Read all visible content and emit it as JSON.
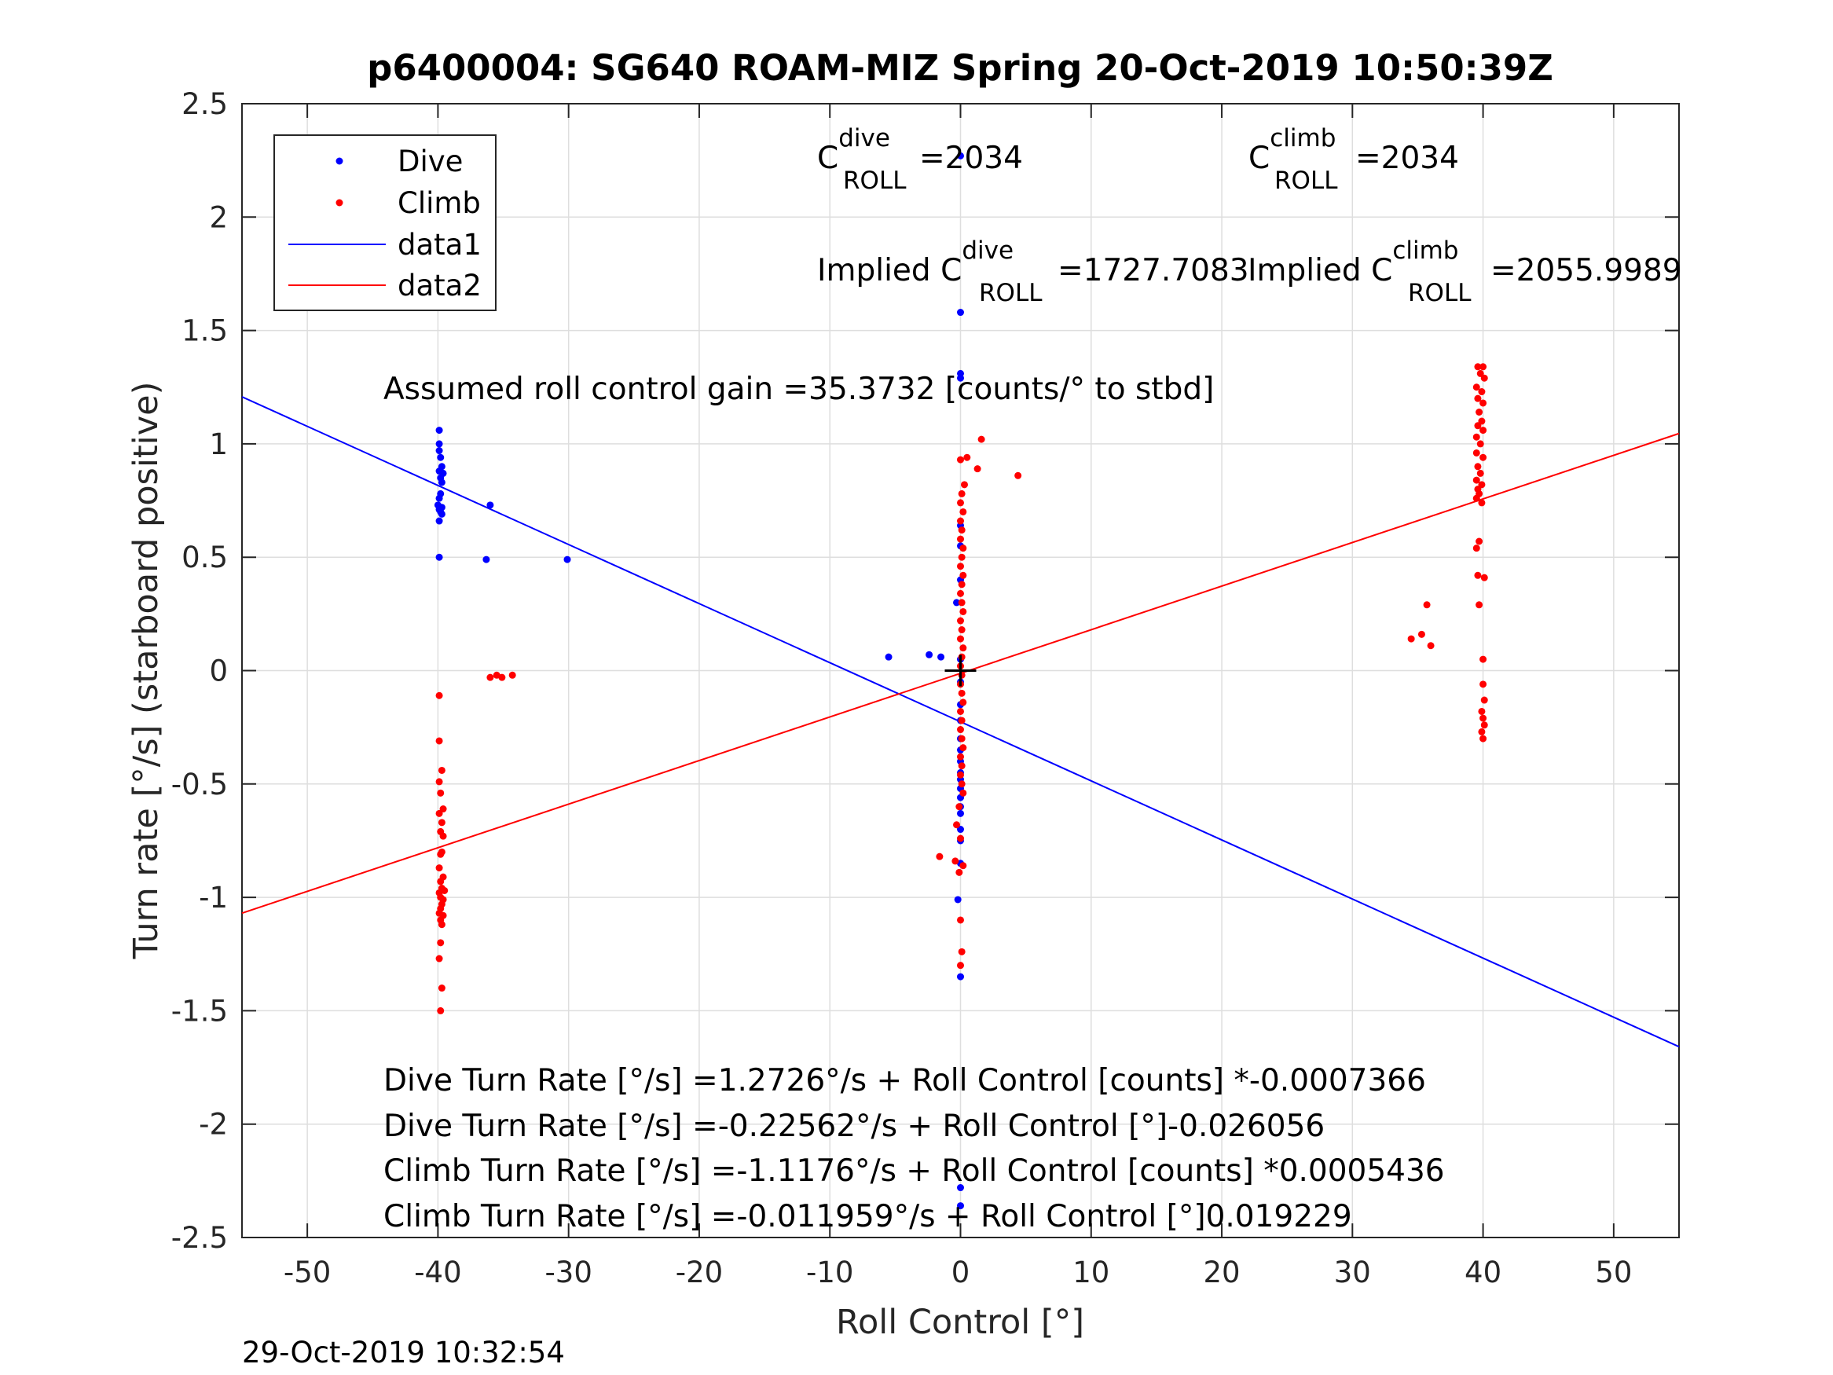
{
  "chart_data": {
    "type": "scatter",
    "title": "p6400004: SG640 ROAM-MIZ Spring 20-Oct-2019 10:50:39Z",
    "xlabel": "Roll Control [°]",
    "ylabel": "Turn rate [°/s] (starboard positive)",
    "xlim": [
      -55,
      55
    ],
    "ylim": [
      -2.5,
      2.5
    ],
    "xticks": [
      -50,
      -40,
      -30,
      -20,
      -10,
      0,
      10,
      20,
      30,
      40,
      50
    ],
    "xtick_labels": [
      "-50",
      "-40",
      "-30",
      "-20",
      "-10",
      "0",
      "10",
      "20",
      "30",
      "40",
      "50"
    ],
    "yticks": [
      -2.5,
      -2,
      -1.5,
      -1,
      -0.5,
      0,
      0.5,
      1,
      1.5,
      2,
      2.5
    ],
    "ytick_labels": [
      "-2.5",
      "-2",
      "-1.5",
      "-1",
      "-0.5",
      "0",
      "0.5",
      "1",
      "1.5",
      "2",
      "2.5"
    ],
    "grid": true,
    "legend_position": "top-left",
    "series": [
      {
        "name": "Dive",
        "kind": "scatter",
        "color": "#0000ff",
        "points": [
          [
            -39.9,
            1.06
          ],
          [
            -39.9,
            1.0
          ],
          [
            -39.9,
            0.97
          ],
          [
            -39.8,
            0.94
          ],
          [
            -39.7,
            0.9
          ],
          [
            -39.9,
            0.88
          ],
          [
            -39.6,
            0.87
          ],
          [
            -39.8,
            0.85
          ],
          [
            -39.7,
            0.83
          ],
          [
            -39.8,
            0.78
          ],
          [
            -39.9,
            0.76
          ],
          [
            -40.0,
            0.73
          ],
          [
            -39.7,
            0.72
          ],
          [
            -39.9,
            0.71
          ],
          [
            -39.8,
            0.7
          ],
          [
            -39.7,
            0.69
          ],
          [
            -39.9,
            0.66
          ],
          [
            -39.9,
            0.5
          ],
          [
            -36.0,
            0.73
          ],
          [
            -36.3,
            0.49
          ],
          [
            -30.1,
            0.49
          ],
          [
            -5.5,
            0.06
          ],
          [
            -2.4,
            0.07
          ],
          [
            -1.5,
            0.06
          ],
          [
            -0.3,
            0.3
          ],
          [
            0.0,
            2.27
          ],
          [
            0.0,
            1.58
          ],
          [
            0.0,
            1.31
          ],
          [
            0.0,
            1.29
          ],
          [
            0.0,
            0.64
          ],
          [
            0.0,
            0.55
          ],
          [
            0.0,
            0.4
          ],
          [
            0.0,
            0.05
          ],
          [
            0.0,
            -0.05
          ],
          [
            0.0,
            -0.15
          ],
          [
            0.0,
            -0.22
          ],
          [
            0.0,
            -0.3
          ],
          [
            0.0,
            -0.35
          ],
          [
            0.0,
            -0.4
          ],
          [
            0.0,
            -0.45
          ],
          [
            0.0,
            -0.48
          ],
          [
            0.0,
            -0.52
          ],
          [
            0.0,
            -0.56
          ],
          [
            0.0,
            -0.6
          ],
          [
            0.0,
            -0.63
          ],
          [
            0.0,
            -0.7
          ],
          [
            0.0,
            -0.75
          ],
          [
            0.0,
            -0.85
          ],
          [
            -0.2,
            -1.01
          ],
          [
            0.0,
            -1.35
          ],
          [
            0.0,
            -2.28
          ],
          [
            0.0,
            -2.36
          ]
        ]
      },
      {
        "name": "Climb",
        "kind": "scatter",
        "color": "#ff0000",
        "points": [
          [
            -39.9,
            -0.11
          ],
          [
            -39.9,
            -0.31
          ],
          [
            -39.7,
            -0.44
          ],
          [
            -39.9,
            -0.49
          ],
          [
            -39.8,
            -0.54
          ],
          [
            -39.6,
            -0.61
          ],
          [
            -39.9,
            -0.63
          ],
          [
            -39.7,
            -0.67
          ],
          [
            -39.8,
            -0.71
          ],
          [
            -39.6,
            -0.73
          ],
          [
            -39.7,
            -0.8
          ],
          [
            -39.8,
            -0.81
          ],
          [
            -39.9,
            -0.87
          ],
          [
            -39.6,
            -0.91
          ],
          [
            -39.8,
            -0.93
          ],
          [
            -39.7,
            -0.96
          ],
          [
            -39.5,
            -0.97
          ],
          [
            -39.9,
            -0.98
          ],
          [
            -39.8,
            -1.0
          ],
          [
            -39.6,
            -1.01
          ],
          [
            -39.7,
            -1.03
          ],
          [
            -39.8,
            -1.05
          ],
          [
            -39.9,
            -1.07
          ],
          [
            -39.6,
            -1.08
          ],
          [
            -39.8,
            -1.1
          ],
          [
            -39.7,
            -1.12
          ],
          [
            -39.8,
            -1.2
          ],
          [
            -39.9,
            -1.27
          ],
          [
            -39.7,
            -1.4
          ],
          [
            -39.8,
            -1.5
          ],
          [
            -36.0,
            -0.03
          ],
          [
            -35.5,
            -0.02
          ],
          [
            -35.1,
            -0.03
          ],
          [
            -34.3,
            -0.02
          ],
          [
            0.0,
            0.93
          ],
          [
            0.5,
            0.94
          ],
          [
            1.3,
            0.89
          ],
          [
            1.6,
            1.02
          ],
          [
            4.4,
            0.86
          ],
          [
            0.3,
            0.82
          ],
          [
            0.1,
            0.78
          ],
          [
            0.0,
            0.74
          ],
          [
            0.2,
            0.7
          ],
          [
            0.0,
            0.66
          ],
          [
            0.1,
            0.62
          ],
          [
            0.0,
            0.58
          ],
          [
            0.2,
            0.54
          ],
          [
            0.1,
            0.5
          ],
          [
            0.0,
            0.46
          ],
          [
            0.2,
            0.42
          ],
          [
            0.1,
            0.38
          ],
          [
            0.0,
            0.34
          ],
          [
            0.1,
            0.3
          ],
          [
            0.2,
            0.26
          ],
          [
            0.0,
            0.22
          ],
          [
            0.1,
            0.18
          ],
          [
            0.0,
            0.14
          ],
          [
            0.2,
            0.1
          ],
          [
            0.1,
            0.06
          ],
          [
            0.0,
            0.02
          ],
          [
            0.1,
            -0.02
          ],
          [
            0.0,
            -0.06
          ],
          [
            0.1,
            -0.1
          ],
          [
            0.2,
            -0.14
          ],
          [
            0.0,
            -0.18
          ],
          [
            0.1,
            -0.22
          ],
          [
            0.0,
            -0.26
          ],
          [
            0.1,
            -0.3
          ],
          [
            0.2,
            -0.34
          ],
          [
            0.0,
            -0.38
          ],
          [
            0.1,
            -0.42
          ],
          [
            0.0,
            -0.46
          ],
          [
            0.1,
            -0.5
          ],
          [
            0.2,
            -0.54
          ],
          [
            -0.1,
            -0.6
          ],
          [
            -0.3,
            -0.68
          ],
          [
            0.0,
            -0.74
          ],
          [
            -1.6,
            -0.82
          ],
          [
            -0.4,
            -0.84
          ],
          [
            -0.1,
            -0.89
          ],
          [
            0.2,
            -0.86
          ],
          [
            0.0,
            -1.1
          ],
          [
            0.1,
            -1.24
          ],
          [
            0.0,
            -1.3
          ],
          [
            39.6,
            1.34
          ],
          [
            40.0,
            1.34
          ],
          [
            39.8,
            1.31
          ],
          [
            40.1,
            1.29
          ],
          [
            39.5,
            1.25
          ],
          [
            39.9,
            1.23
          ],
          [
            39.6,
            1.2
          ],
          [
            40.0,
            1.18
          ],
          [
            39.7,
            1.14
          ],
          [
            39.9,
            1.1
          ],
          [
            39.6,
            1.08
          ],
          [
            40.0,
            1.06
          ],
          [
            39.5,
            1.03
          ],
          [
            39.8,
            1.0
          ],
          [
            39.5,
            0.96
          ],
          [
            40.0,
            0.94
          ],
          [
            39.6,
            0.9
          ],
          [
            39.8,
            0.87
          ],
          [
            39.5,
            0.84
          ],
          [
            39.9,
            0.82
          ],
          [
            39.6,
            0.8
          ],
          [
            39.7,
            0.78
          ],
          [
            39.5,
            0.76
          ],
          [
            39.9,
            0.74
          ],
          [
            39.7,
            0.57
          ],
          [
            39.5,
            0.54
          ],
          [
            39.6,
            0.42
          ],
          [
            40.1,
            0.41
          ],
          [
            39.7,
            0.29
          ],
          [
            35.7,
            0.29
          ],
          [
            34.5,
            0.14
          ],
          [
            35.3,
            0.16
          ],
          [
            36.0,
            0.11
          ],
          [
            40.0,
            0.05
          ],
          [
            40.0,
            -0.06
          ],
          [
            40.1,
            -0.13
          ],
          [
            39.9,
            -0.18
          ],
          [
            40.0,
            -0.21
          ],
          [
            40.1,
            -0.24
          ],
          [
            39.9,
            -0.27
          ],
          [
            40.0,
            -0.3
          ]
        ]
      },
      {
        "name": "data1",
        "kind": "line",
        "color": "#0000ff",
        "x": [
          -55,
          55
        ],
        "y": [
          1.2074,
          -1.6587
        ]
      },
      {
        "name": "data2",
        "kind": "line",
        "color": "#ff0000",
        "x": [
          -55,
          55
        ],
        "y": [
          -1.0696,
          1.0456
        ]
      }
    ],
    "marker": {
      "x": 0,
      "y": 0,
      "symbol": "+",
      "color": "#000000"
    }
  },
  "annotations": {
    "c_dive_c": "C",
    "c_dive_sup": "dive",
    "c_dive_sub": "ROLL",
    "c_dive_val": "=2034",
    "c_climb_c": "C",
    "c_climb_sup": "climb",
    "c_climb_sub": "ROLL",
    "c_climb_val": "=2034",
    "implied_dive_prefix": "Implied C",
    "implied_dive_sup": "dive",
    "implied_dive_sub": "ROLL",
    "implied_dive_val": "=1727.7083",
    "implied_climb_prefix": "Implied C",
    "implied_climb_sup": "climb",
    "implied_climb_sub": "ROLL",
    "implied_climb_val": "=2055.9989",
    "gain": "Assumed roll control gain =35.3732 [counts/° to stbd]",
    "eq1": "Dive Turn Rate [°/s] =1.2726°/s + Roll Control [counts] *-0.0007366",
    "eq2": "Dive Turn Rate [°/s] =-0.22562°/s + Roll Control [°]-0.026056",
    "eq3": "Climb Turn Rate [°/s] =-1.1176°/s + Roll Control [counts] *0.0005436",
    "eq4": "Climb Turn Rate [°/s] =-0.011959°/s + Roll Control [°]0.019229"
  },
  "timestamp": "29-Oct-2019 10:32:54"
}
